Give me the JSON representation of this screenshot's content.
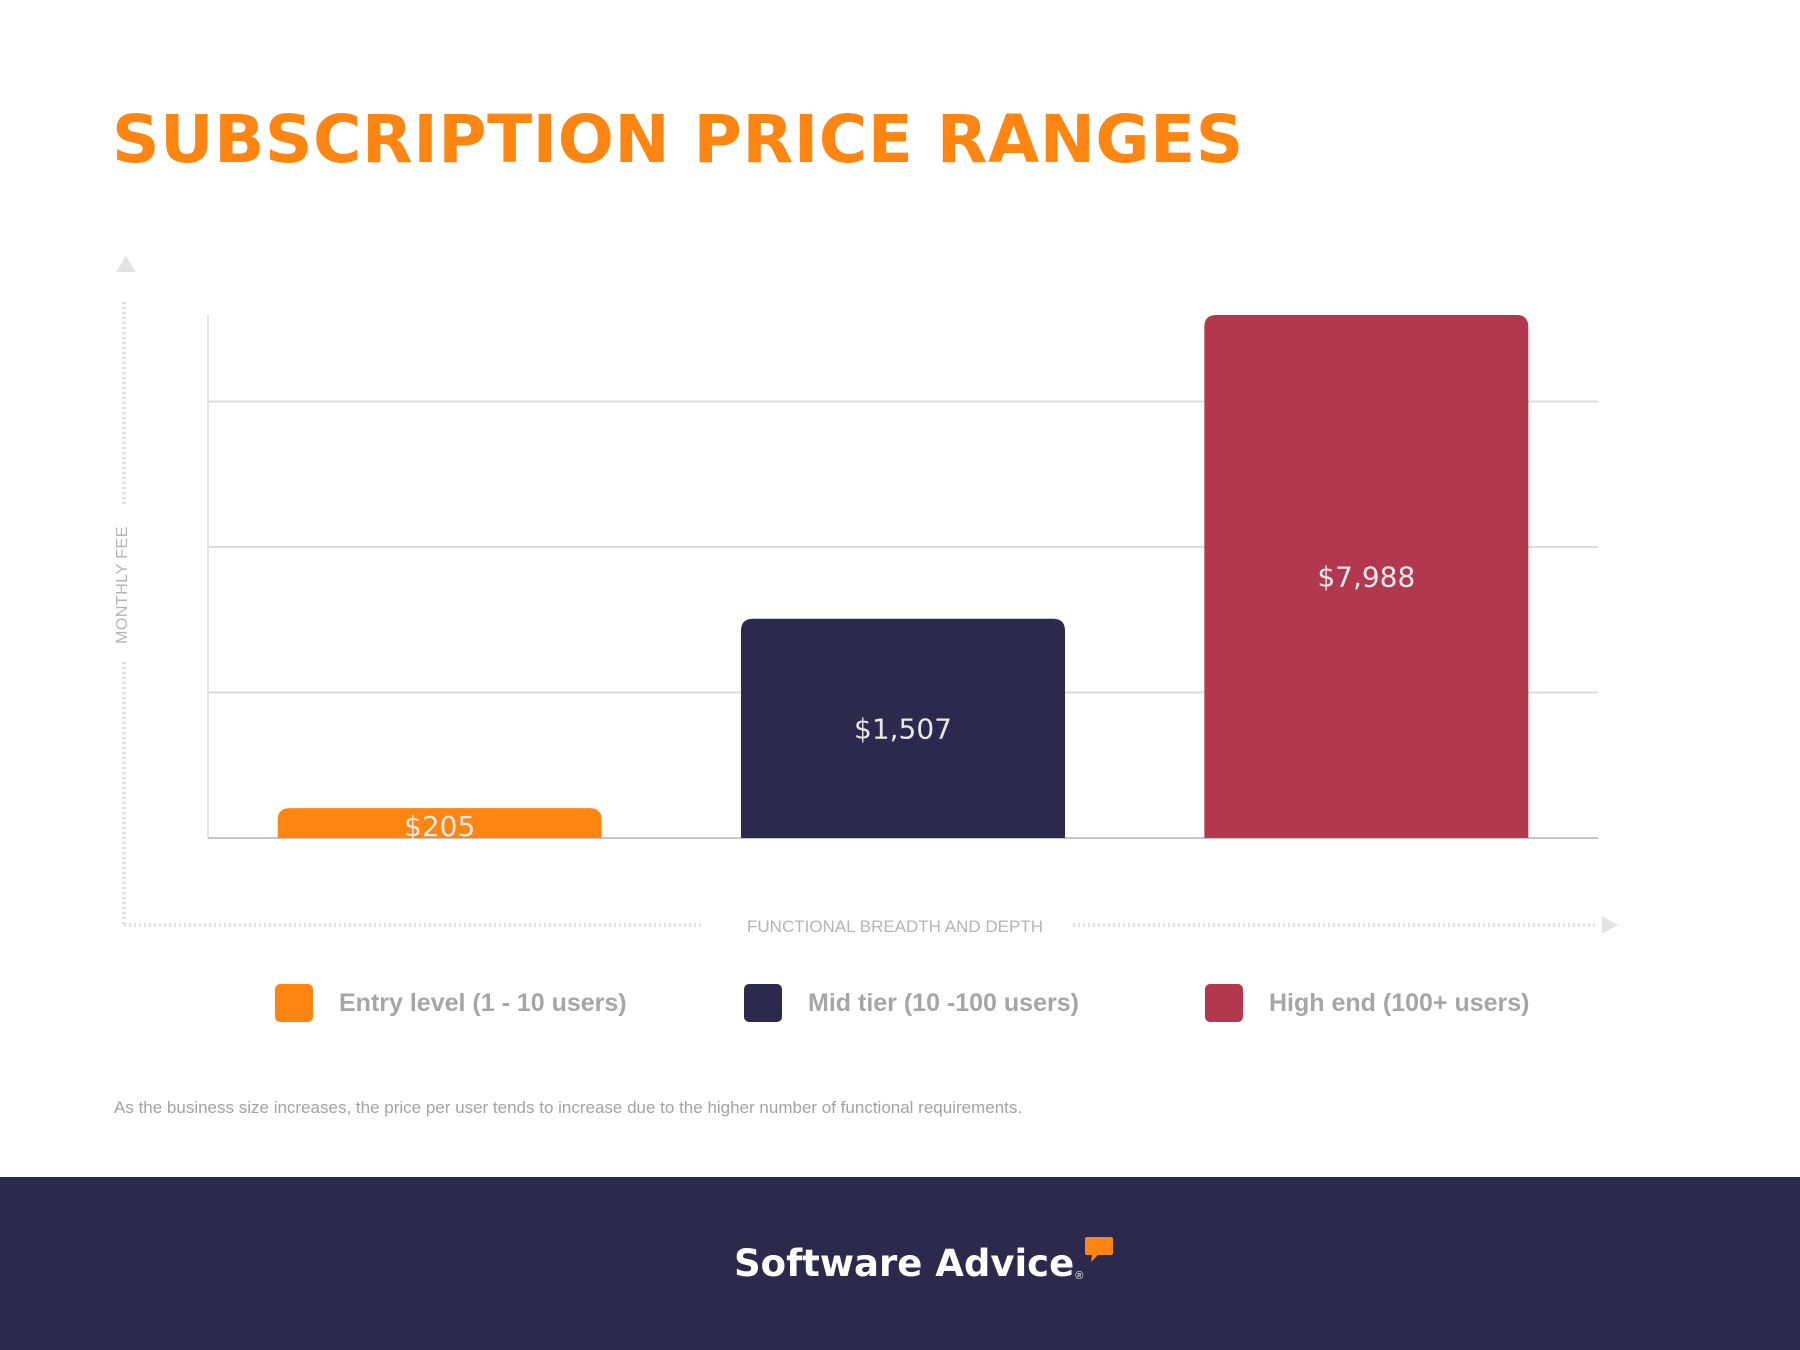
{
  "colors": {
    "title": "#fd8511",
    "entry": "#fd8511",
    "mid": "#2d294d",
    "high": "#b23850",
    "grid": "#dcdcdc",
    "axis": "#c6c6c6",
    "axis_text": "#b5b5b5",
    "legend_text": "#a6a6a6",
    "footer_bg": "#2d294d",
    "bar_label": "#e8e8e8"
  },
  "header": {
    "title": "SUBSCRIPTION PRICE RANGES"
  },
  "chart_data": {
    "type": "bar",
    "categories": [
      "Entry level (1 - 10 users)",
      "Mid tier (10 -100 users)",
      "High end (100+ users)"
    ],
    "values": [
      205,
      1507,
      7988
    ],
    "value_labels": [
      "$205",
      "$1,507",
      "$7,988"
    ],
    "title": "SUBSCRIPTION PRICE RANGES",
    "xlabel": "FUNCTIONAL BREADTH AND DEPTH",
    "ylabel": "MONTHLY FEE",
    "ylim": [
      0,
      3600
    ],
    "yticks": [
      0,
      1000,
      2000,
      3000
    ],
    "scale_break": true,
    "grid": true,
    "legend_position": "bottom"
  },
  "legend": {
    "items": [
      {
        "label": "Entry level (1 - 10 users)",
        "color": "#fd8511"
      },
      {
        "label": "Mid tier (10 -100 users)",
        "color": "#2d294d"
      },
      {
        "label": "High end (100+ users)",
        "color": "#b23850"
      }
    ]
  },
  "caption": "As the business size increases, the price per user tends to increase due to the higher number of functional requirements.",
  "footer": {
    "brand_name": "Software Advice",
    "brand_mark": "®"
  }
}
